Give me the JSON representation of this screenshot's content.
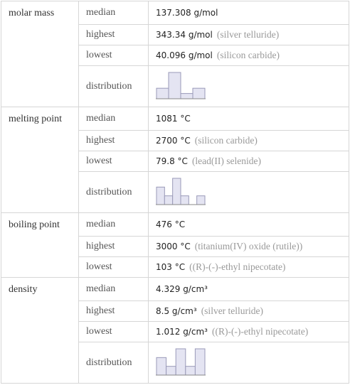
{
  "properties": [
    {
      "name": "molar mass",
      "rows": [
        {
          "label": "median",
          "value": "137.308",
          "unit": "g/mol"
        },
        {
          "label": "highest",
          "value": "343.34",
          "unit": "g/mol",
          "note": "(silver telluride)"
        },
        {
          "label": "lowest",
          "value": "40.096",
          "unit": "g/mol",
          "note": "(silicon carbide)"
        }
      ],
      "distribution": {
        "label": "distribution",
        "counts": [
          2,
          5,
          1,
          2
        ]
      }
    },
    {
      "name": "melting point",
      "rows": [
        {
          "label": "median",
          "value": "1081",
          "unit": "°C"
        },
        {
          "label": "highest",
          "value": "2700",
          "unit": "°C",
          "note": "(silicon carbide)"
        },
        {
          "label": "lowest",
          "value": "79.8",
          "unit": "°C",
          "note": "(lead(II) selenide)"
        }
      ],
      "distribution": {
        "label": "distribution",
        "counts": [
          2,
          1,
          3,
          1,
          0,
          1
        ]
      }
    },
    {
      "name": "boiling point",
      "rows": [
        {
          "label": "median",
          "value": "476",
          "unit": "°C"
        },
        {
          "label": "highest",
          "value": "3000",
          "unit": "°C",
          "note": "(titanium(IV) oxide (rutile))"
        },
        {
          "label": "lowest",
          "value": "103",
          "unit": "°C",
          "note": "((R)-(-)-ethyl nipecotate)"
        }
      ]
    },
    {
      "name": "density",
      "rows": [
        {
          "label": "median",
          "value": "4.329",
          "unit": "g/cm³"
        },
        {
          "label": "highest",
          "value": "8.5",
          "unit": "g/cm³",
          "note": "(silver telluride)"
        },
        {
          "label": "lowest",
          "value": "1.012",
          "unit": "g/cm³",
          "note": "((R)-(-)-ethyl nipecotate)"
        }
      ],
      "distribution": {
        "label": "distribution",
        "counts": [
          2,
          1,
          3,
          1,
          3
        ]
      }
    }
  ]
}
